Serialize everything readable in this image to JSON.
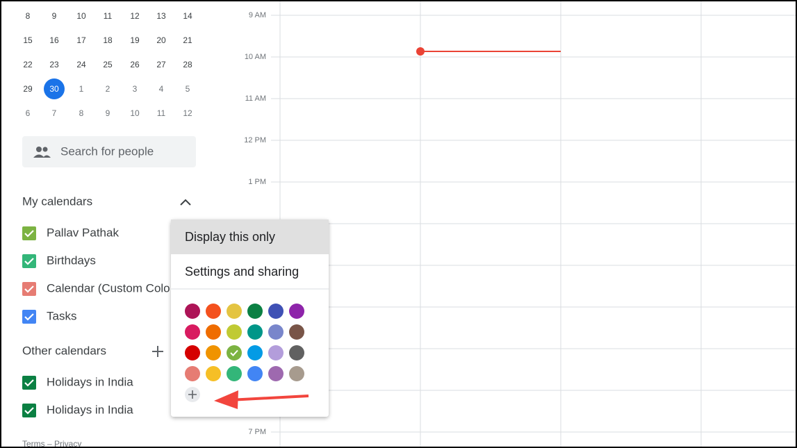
{
  "mini_calendar": {
    "weeks": [
      [
        8,
        9,
        10,
        11,
        12,
        13,
        14
      ],
      [
        15,
        16,
        17,
        18,
        19,
        20,
        21
      ],
      [
        22,
        23,
        24,
        25,
        26,
        27,
        28
      ],
      [
        29,
        30,
        1,
        2,
        3,
        4,
        5
      ],
      [
        6,
        7,
        8,
        9,
        10,
        11,
        12
      ]
    ]
  },
  "search": {
    "placeholder": "Search for people"
  },
  "my_calendars": {
    "title": "My calendars",
    "items": [
      {
        "label": "Pallav Pathak",
        "color": "#7cb342"
      },
      {
        "label": "Birthdays",
        "color": "#33b679"
      },
      {
        "label": "Calendar (Custom Colo",
        "color": "#e67c73"
      },
      {
        "label": "Tasks",
        "color": "#4285f4"
      }
    ]
  },
  "other_calendars": {
    "title": "Other calendars",
    "items": [
      {
        "label": "Holidays in India",
        "color": "#0b8043"
      },
      {
        "label": "Holidays in India",
        "color": "#0b8043"
      }
    ]
  },
  "footer": "Terms – Privacy",
  "time_labels": [
    "9 AM",
    "10 AM",
    "11 AM",
    "12 PM",
    "1 PM",
    "7 PM"
  ],
  "menu": {
    "items": [
      "Display this only",
      "Settings and sharing"
    ]
  }
}
